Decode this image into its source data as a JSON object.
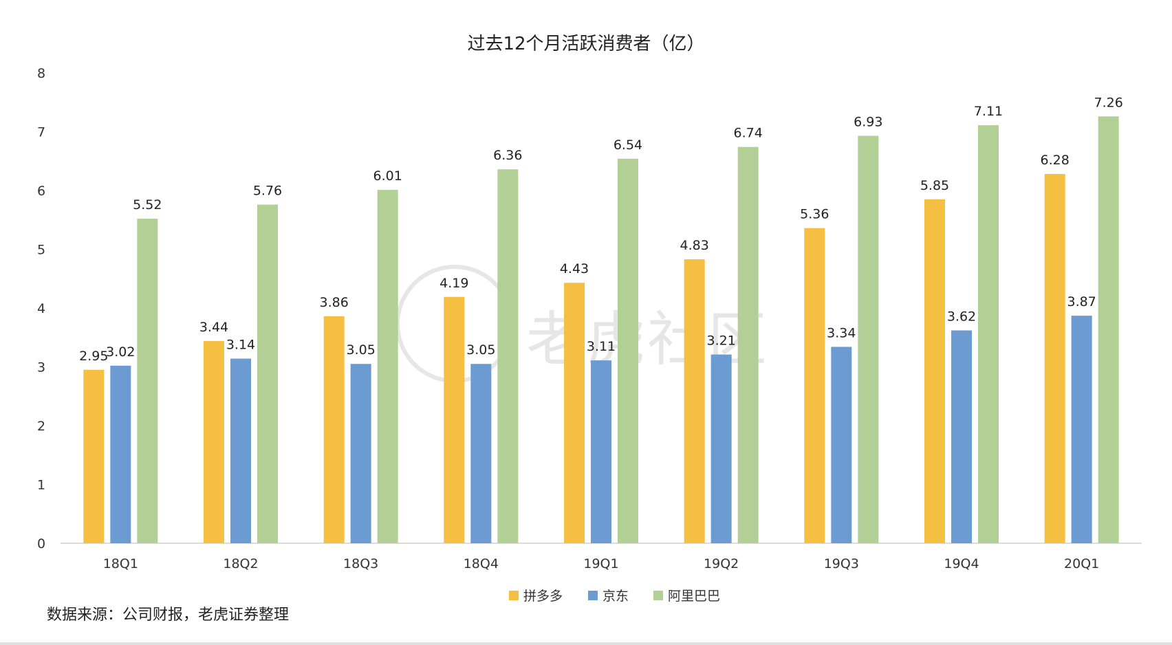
{
  "source_note": "数据来源：公司财报，老虎证券整理",
  "watermark": {
    "text": "老虎社区"
  },
  "chart_data": {
    "type": "bar",
    "title": "过去12个月活跃消费者（亿）",
    "xlabel": "",
    "ylabel": "",
    "ylim": [
      0,
      8
    ],
    "yticks": [
      "0",
      "1",
      "2",
      "3",
      "4",
      "5",
      "6",
      "7",
      "8"
    ],
    "grid": false,
    "legend_position": "bottom",
    "categories": [
      "18Q1",
      "18Q2",
      "18Q3",
      "18Q4",
      "19Q1",
      "19Q2",
      "19Q3",
      "19Q4",
      "20Q1"
    ],
    "series": [
      {
        "name": "拼多多",
        "color": "#F5BF42",
        "values": [
          2.95,
          3.44,
          3.86,
          4.19,
          4.43,
          4.83,
          5.36,
          5.85,
          6.28
        ],
        "labels": [
          "2.95",
          "3.44",
          "3.86",
          "4.19",
          "4.43",
          "4.83",
          "5.36",
          "5.85",
          "6.28"
        ]
      },
      {
        "name": "京东",
        "color": "#6B9BD1",
        "values": [
          3.02,
          3.14,
          3.05,
          3.05,
          3.11,
          3.21,
          3.34,
          3.62,
          3.87
        ],
        "labels": [
          "3.02",
          "3.14",
          "3.05",
          "3.05",
          "3.11",
          "3.21",
          "3.34",
          "3.62",
          "3.87"
        ]
      },
      {
        "name": "阿里巴巴",
        "color": "#B2D096",
        "values": [
          5.52,
          5.76,
          6.01,
          6.36,
          6.54,
          6.74,
          6.93,
          7.11,
          7.26
        ],
        "labels": [
          "5.52",
          "5.76",
          "6.01",
          "6.36",
          "6.54",
          "6.74",
          "6.93",
          "7.11",
          "7.26"
        ]
      }
    ]
  }
}
